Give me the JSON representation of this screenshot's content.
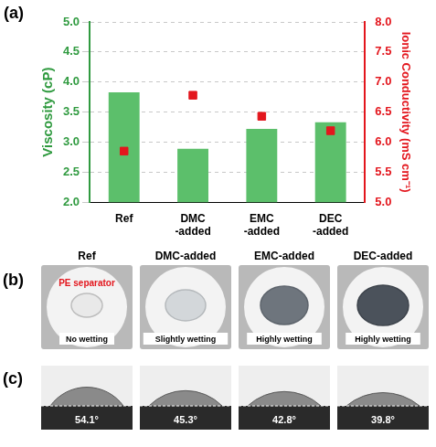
{
  "panel_labels": [
    "(a)",
    "(b)",
    "(c)"
  ],
  "chart_data": {
    "type": "bar",
    "categories": [
      "Ref",
      "DMC\n-added",
      "EMC\n-added",
      "DEC\n-added"
    ],
    "y_label": "Viscosity (cP)",
    "y2_label": "Ionic Conductivity (mS cm⁻¹)",
    "ylim": [
      2,
      5
    ],
    "yticks": [
      {
        "value": 2,
        "label": "2.0"
      },
      2.5,
      {
        "value": 3,
        "label": "3.0"
      },
      3.5,
      {
        "value": 4,
        "label": "4.0"
      },
      4.5,
      {
        "value": 5,
        "label": "5.0"
      }
    ],
    "y2lim": [
      5,
      8
    ],
    "y2ticks": [
      {
        "value": 5,
        "label": "5.0"
      },
      5.5,
      {
        "value": 6,
        "label": "6.0"
      },
      6.5,
      {
        "value": 7,
        "label": "7.0"
      },
      7.5,
      {
        "value": 8,
        "label": "8.0"
      }
    ],
    "grid": true,
    "series": [
      {
        "type": "bar",
        "color": "#5cbf6b",
        "values": [
          3.83,
          2.89,
          3.22,
          3.33
        ]
      },
      {
        "type": "scatter",
        "marker": "square",
        "color": "#e3161d",
        "axis": "y2",
        "values": [
          5.85,
          6.78,
          6.43,
          6.19
        ]
      }
    ]
  },
  "wetting": [
    {
      "title": "Ref",
      "note": "PE separator",
      "label": "No wetting"
    },
    {
      "title": "DMC-added",
      "label": "Slightly wetting"
    },
    {
      "title": "EMC-added",
      "label": "Highly wetting"
    },
    {
      "title": "DEC-added",
      "label": "Highly wetting"
    }
  ],
  "contact_angle": [
    {
      "angle": 54.1,
      "label": "54.1°"
    },
    {
      "angle": 45.3,
      "label": "45.3°"
    },
    {
      "angle": 42.8,
      "label": "42.8°"
    },
    {
      "angle": 39.8,
      "label": "39.8°"
    }
  ]
}
